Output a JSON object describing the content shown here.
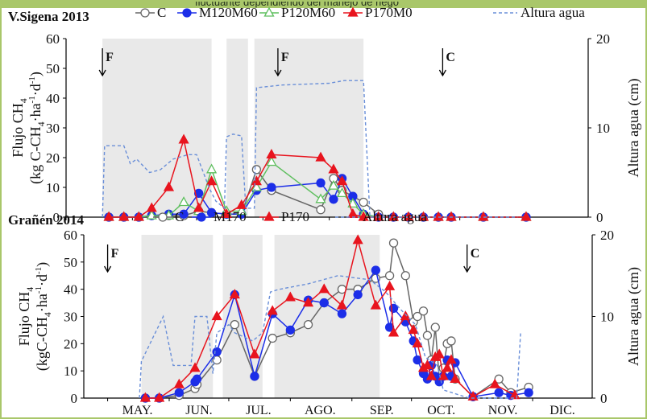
{
  "header_snippet": "fluctuante dependiendo del manejo de riego",
  "chart_data": [
    {
      "type": "line",
      "title": "V.Sigena  2013",
      "ylabel": "Flujo CH4 (kg C-CH4·ha-1·d-1)",
      "ylabel_lines": [
        "Flujo CH",
        "(kg C-CH",
        "·ha",
        "·d",
        ")"
      ],
      "y2label": "Altura agua (cm)",
      "ylim": [
        0,
        60
      ],
      "yticks": [
        0,
        10,
        20,
        30,
        40,
        50,
        60
      ],
      "y2lim": [
        0,
        20
      ],
      "y2ticks": [
        0,
        10,
        20
      ],
      "xlim": [
        "2013-05-01",
        "2013-12-31"
      ],
      "shaded_periods": [
        [
          "2013-05-18",
          "2013-07-08"
        ],
        [
          "2013-07-15",
          "2013-07-25"
        ],
        [
          "2013-07-28",
          "2013-09-17"
        ]
      ],
      "annotations": [
        {
          "label": "F",
          "date": "2013-05-18"
        },
        {
          "label": "F",
          "date": "2013-08-08"
        },
        {
          "label": "C",
          "date": "2013-10-24"
        }
      ],
      "legend": [
        "C",
        "M120M60",
        "P120M60",
        "P170M0",
        "Altura agua"
      ],
      "series": [
        {
          "name": "C",
          "color": "#666666",
          "marker": "circle-open",
          "x": [
            "2013-05-21",
            "2013-05-28",
            "2013-06-04",
            "2013-06-10",
            "2013-06-18",
            "2013-06-25",
            "2013-07-02",
            "2013-07-08",
            "2013-07-15",
            "2013-07-22",
            "2013-07-29",
            "2013-08-05",
            "2013-08-28",
            "2013-09-03",
            "2013-09-07",
            "2013-09-12",
            "2013-09-17",
            "2013-09-24",
            "2013-10-01",
            "2013-10-08",
            "2013-10-15",
            "2013-10-22",
            "2013-10-28",
            "2013-11-12",
            "2013-12-02"
          ],
          "values": [
            0,
            0,
            0,
            0.5,
            0.5,
            0.5,
            2,
            1.5,
            1,
            1,
            16,
            9,
            2.5,
            13,
            9,
            7,
            5,
            1,
            0,
            0,
            0,
            0,
            0,
            0,
            0
          ]
        },
        {
          "name": "M120M60",
          "color": "#1c2ee8",
          "marker": "circle",
          "x": [
            "2013-05-21",
            "2013-05-28",
            "2013-06-04",
            "2013-06-10",
            "2013-06-18",
            "2013-06-25",
            "2013-07-02",
            "2013-07-08",
            "2013-07-15",
            "2013-07-22",
            "2013-07-29",
            "2013-08-05",
            "2013-08-28",
            "2013-09-03",
            "2013-09-07",
            "2013-09-12",
            "2013-09-17",
            "2013-09-24",
            "2013-10-01",
            "2013-10-08",
            "2013-10-15",
            "2013-10-22",
            "2013-10-28",
            "2013-11-12",
            "2013-12-02"
          ],
          "values": [
            0,
            0,
            0,
            0.5,
            1,
            1,
            8,
            1.5,
            1,
            1,
            9,
            10,
            11.5,
            6,
            13,
            7,
            1,
            0,
            0,
            0,
            0,
            0,
            0,
            0,
            0
          ]
        },
        {
          "name": "P120M60",
          "color": "#5fbf5f",
          "marker": "triangle-open",
          "x": [
            "2013-05-21",
            "2013-05-28",
            "2013-06-04",
            "2013-06-10",
            "2013-06-18",
            "2013-06-25",
            "2013-07-02",
            "2013-07-08",
            "2013-07-15",
            "2013-07-22",
            "2013-07-29",
            "2013-08-05",
            "2013-08-28",
            "2013-09-03",
            "2013-09-07",
            "2013-09-12",
            "2013-09-17",
            "2013-09-24",
            "2013-10-01",
            "2013-10-08",
            "2013-10-15",
            "2013-10-22",
            "2013-10-28",
            "2013-11-12",
            "2013-12-02"
          ],
          "values": [
            0,
            0,
            0,
            0.5,
            0.5,
            5,
            2,
            16,
            2,
            2,
            10,
            18.5,
            6,
            10.5,
            8,
            4.5,
            1,
            0,
            0,
            0,
            0,
            0,
            0,
            0,
            0
          ]
        },
        {
          "name": "P170M0",
          "color": "#e8141e",
          "marker": "triangle",
          "x": [
            "2013-05-21",
            "2013-05-28",
            "2013-06-04",
            "2013-06-10",
            "2013-06-18",
            "2013-06-25",
            "2013-07-02",
            "2013-07-08",
            "2013-07-15",
            "2013-07-22",
            "2013-07-29",
            "2013-08-05",
            "2013-08-28",
            "2013-09-03",
            "2013-09-07",
            "2013-09-12",
            "2013-09-17",
            "2013-09-24",
            "2013-10-01",
            "2013-10-08",
            "2013-10-15",
            "2013-10-22",
            "2013-10-28",
            "2013-11-12",
            "2013-12-02"
          ],
          "values": [
            0,
            0,
            0,
            3,
            10,
            26,
            3,
            12,
            1,
            4,
            12,
            21,
            20,
            16,
            12,
            1,
            0,
            0,
            0,
            0,
            0,
            0,
            0,
            0,
            0
          ]
        },
        {
          "name": "Altura agua",
          "color": "#6a8fd8",
          "line": "dashed",
          "axis": "y2",
          "x": [
            "2013-05-18",
            "2013-05-19",
            "2013-05-28",
            "2013-05-31",
            "2013-06-03",
            "2013-06-09",
            "2013-06-14",
            "2013-06-20",
            "2013-06-27",
            "2013-07-01",
            "2013-07-07",
            "2013-07-10",
            "2013-07-14",
            "2013-07-15",
            "2013-07-18",
            "2013-07-22",
            "2013-07-24",
            "2013-07-28",
            "2013-07-29",
            "2013-08-10",
            "2013-09-01",
            "2013-09-08",
            "2013-09-17",
            "2013-09-20",
            "2013-09-25",
            "2013-11-28"
          ],
          "values": [
            0,
            8,
            8,
            6,
            6.5,
            5,
            5.3,
            6.5,
            7,
            7,
            3.2,
            1.8,
            1,
            9,
            9.3,
            9.1,
            1,
            1,
            14.5,
            14.8,
            15,
            15.3,
            15.3,
            0,
            0,
            0
          ]
        }
      ]
    },
    {
      "type": "line",
      "title": "Grañén  2014",
      "ylabel": "Flujo CH4 (kgC-CH4·ha-1·d-1)",
      "ylabel_lines": [
        "Flujo CH",
        "(kgC-CH",
        "·ha",
        "·d",
        ")"
      ],
      "y2label": "Altura agua (cm)",
      "ylim": [
        0,
        60
      ],
      "yticks": [
        0,
        10,
        20,
        30,
        40,
        50,
        60
      ],
      "y2lim": [
        0,
        20
      ],
      "y2ticks": [
        0,
        10,
        20
      ],
      "categories": [
        "MAY.",
        "JUN.",
        "JUL.",
        "AGO.",
        "SEP.",
        "OCT.",
        "NOV.",
        "DIC."
      ],
      "xlim": [
        "2014-04-19",
        "2014-12-31"
      ],
      "shaded_periods": [
        [
          "2014-05-18",
          "2014-06-23"
        ],
        [
          "2014-06-28",
          "2014-07-18"
        ],
        [
          "2014-07-24",
          "2014-09-15"
        ]
      ],
      "annotations": [
        {
          "label": "F",
          "date": "2014-05-01"
        },
        {
          "label": "C",
          "date": "2014-10-29"
        }
      ],
      "legend": [
        "C",
        "M170",
        "P170",
        "Altura agua"
      ],
      "series": [
        {
          "name": "C",
          "color": "#666666",
          "marker": "circle-open",
          "x": [
            "2014-05-20",
            "2014-05-27",
            "2014-06-06",
            "2014-06-14",
            "2014-06-15",
            "2014-06-25",
            "2014-07-04",
            "2014-07-14",
            "2014-07-23",
            "2014-08-01",
            "2014-08-10",
            "2014-08-18",
            "2014-08-27",
            "2014-09-04",
            "2014-09-13",
            "2014-09-20",
            "2014-09-22",
            "2014-09-28",
            "2014-10-02",
            "2014-10-04",
            "2014-10-07",
            "2014-10-09",
            "2014-10-11",
            "2014-10-13",
            "2014-10-15",
            "2014-10-17",
            "2014-10-19",
            "2014-10-21",
            "2014-10-23",
            "2014-11-01",
            "2014-11-14",
            "2014-11-20",
            "2014-11-29"
          ],
          "values": [
            0,
            0,
            1,
            3.5,
            5,
            14,
            27,
            8,
            22,
            24,
            27,
            35,
            40,
            40,
            44,
            45,
            57,
            45,
            28,
            30,
            32,
            23,
            14,
            26,
            7,
            11,
            20,
            21,
            7,
            0.5,
            7,
            2,
            4
          ]
        },
        {
          "name": "M170",
          "color": "#1c2ee8",
          "marker": "circle",
          "x": [
            "2014-05-20",
            "2014-05-27",
            "2014-06-06",
            "2014-06-14",
            "2014-06-15",
            "2014-06-25",
            "2014-07-04",
            "2014-07-14",
            "2014-07-23",
            "2014-08-01",
            "2014-08-10",
            "2014-08-18",
            "2014-08-27",
            "2014-09-04",
            "2014-09-13",
            "2014-09-20",
            "2014-09-22",
            "2014-09-28",
            "2014-10-02",
            "2014-10-04",
            "2014-10-07",
            "2014-10-09",
            "2014-10-11",
            "2014-10-13",
            "2014-10-15",
            "2014-10-17",
            "2014-10-19",
            "2014-10-21",
            "2014-10-23",
            "2014-11-01",
            "2014-11-14",
            "2014-11-20",
            "2014-11-29"
          ],
          "values": [
            0,
            0,
            2,
            6,
            7,
            17,
            38,
            8,
            31,
            25,
            36,
            35,
            31,
            38,
            47,
            26,
            33,
            28,
            21,
            14,
            9,
            7,
            12,
            8,
            6,
            8,
            14,
            8,
            13,
            0.5,
            2,
            1,
            2
          ]
        },
        {
          "name": "P170",
          "color": "#e8141e",
          "marker": "triangle",
          "x": [
            "2014-05-20",
            "2014-05-27",
            "2014-06-06",
            "2014-06-14",
            "2014-06-25",
            "2014-07-04",
            "2014-07-14",
            "2014-07-23",
            "2014-08-01",
            "2014-08-10",
            "2014-08-18",
            "2014-08-27",
            "2014-09-04",
            "2014-09-13",
            "2014-09-20",
            "2014-09-22",
            "2014-09-28",
            "2014-10-02",
            "2014-10-04",
            "2014-10-07",
            "2014-10-09",
            "2014-10-11",
            "2014-10-13",
            "2014-10-15",
            "2014-10-17",
            "2014-10-19",
            "2014-10-21",
            "2014-10-23",
            "2014-11-01",
            "2014-11-12",
            "2014-11-22"
          ],
          "values": [
            0,
            0,
            5,
            11,
            30,
            38,
            16,
            32,
            37,
            35,
            40,
            34,
            58,
            34,
            41,
            24,
            30,
            25,
            20,
            11,
            12,
            8,
            15,
            16,
            8,
            11,
            14,
            7,
            0.5,
            5,
            1
          ]
        },
        {
          "name": "Altura agua",
          "color": "#6a8fd8",
          "line": "dashed",
          "axis": "y2",
          "x": [
            "2014-05-17",
            "2014-05-18",
            "2014-05-29",
            "2014-06-03",
            "2014-06-12",
            "2014-06-14",
            "2014-06-20",
            "2014-06-23",
            "2014-06-25",
            "2014-07-01",
            "2014-07-04",
            "2014-07-13",
            "2014-07-18",
            "2014-07-22",
            "2014-07-26",
            "2014-08-10",
            "2014-08-25",
            "2014-09-10",
            "2014-09-18",
            "2014-09-25",
            "2014-10-03",
            "2014-10-08",
            "2014-10-14",
            "2014-10-17",
            "2014-10-30",
            "2014-11-14",
            "2014-11-23",
            "2014-11-25"
          ],
          "values": [
            0,
            4.5,
            10,
            4,
            4,
            10,
            10,
            3,
            8,
            9,
            8,
            7,
            8,
            13,
            13.3,
            14,
            15,
            14.5,
            13,
            11,
            9,
            5,
            4,
            1,
            0,
            0,
            0,
            8.2
          ]
        }
      ]
    }
  ]
}
